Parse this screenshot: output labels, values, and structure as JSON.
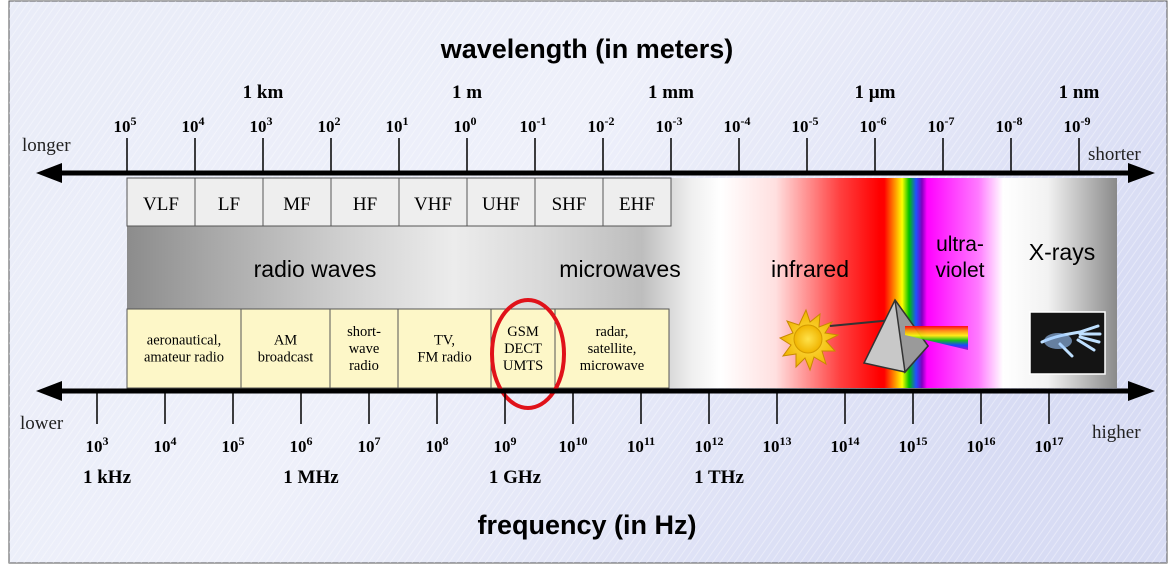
{
  "wavelength_title": "wavelength (in meters)",
  "frequency_title": "frequency (in Hz)",
  "side_labels": {
    "longer": "longer",
    "shorter": "shorter",
    "lower": "lower",
    "higher": "higher"
  },
  "wavelength_units": [
    {
      "text": "1 km",
      "exp": "3"
    },
    {
      "text": "1 m",
      "exp": "0"
    },
    {
      "text": "1 mm",
      "exp": "-3"
    },
    {
      "text": "1 µm",
      "exp": "-6"
    },
    {
      "text": "1 nm",
      "exp": "-9"
    }
  ],
  "wavelength_exponents": [
    "5",
    "4",
    "3",
    "2",
    "1",
    "0",
    "-1",
    "-2",
    "-3",
    "-4",
    "-5",
    "-6",
    "-7",
    "-8",
    "-9"
  ],
  "frequency_exponents": [
    "3",
    "4",
    "5",
    "6",
    "7",
    "8",
    "9",
    "10",
    "11",
    "12",
    "13",
    "14",
    "15",
    "16",
    "17"
  ],
  "frequency_units": [
    {
      "text": "1 kHz",
      "exp": "3"
    },
    {
      "text": "1 MHz",
      "exp": "6"
    },
    {
      "text": "1 GHz",
      "exp": "9"
    },
    {
      "text": "1 THz",
      "exp": "12"
    }
  ],
  "bands": [
    "VLF",
    "LF",
    "MF",
    "HF",
    "VHF",
    "UHF",
    "SHF",
    "EHF"
  ],
  "regions": {
    "radio": "radio waves",
    "microwaves": "microwaves",
    "infrared": "infrared",
    "ultraviolet": [
      "ultra-",
      "violet"
    ],
    "xrays": "X-rays"
  },
  "applications": [
    {
      "lines": [
        "aeronautical,",
        "amateur radio"
      ]
    },
    {
      "lines": [
        "AM",
        "broadcast"
      ]
    },
    {
      "lines": [
        "short-",
        "wave",
        "radio"
      ]
    },
    {
      "lines": [
        "TV,",
        "FM radio"
      ]
    },
    {
      "lines": [
        "GSM",
        "DECT",
        "UMTS"
      ],
      "highlighted": true
    },
    {
      "lines": [
        "radar,",
        "satellite,",
        "microwave"
      ]
    }
  ],
  "colors": {
    "highlight_ring": "#e0121a",
    "application_box": "#fdf7c8",
    "band_box": "#eeeeee",
    "sun": "#f5c400",
    "infrared": "#ff1f1f",
    "ultraviolet": "#ff20ff",
    "background": "#e4e8f8"
  },
  "icons": [
    "sun-icon",
    "prism-icon",
    "xray-hand-icon"
  ]
}
